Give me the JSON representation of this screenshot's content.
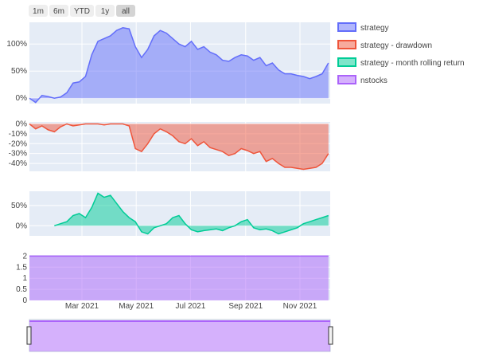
{
  "range_selector": {
    "buttons": [
      {
        "label": "1m",
        "active": false
      },
      {
        "label": "6m",
        "active": false
      },
      {
        "label": "YTD",
        "active": false
      },
      {
        "label": "1y",
        "active": false
      },
      {
        "label": "all",
        "active": true
      }
    ]
  },
  "colors": {
    "strategy": "#636efa",
    "drawdown": "#ef553b",
    "rolling": "#00cc96",
    "nstocks": "#ab63fa",
    "plot_bg": "#e5ecf6"
  },
  "legend": {
    "position": "top-right",
    "items": [
      {
        "label": "strategy",
        "color": "#636efa"
      },
      {
        "label": "strategy - drawdown",
        "color": "#ef553b"
      },
      {
        "label": "strategy - month rolling return",
        "color": "#00cc96"
      },
      {
        "label": "nstocks",
        "color": "#ab63fa"
      }
    ]
  },
  "chart_data": [
    {
      "type": "area",
      "series": [
        {
          "name": "strategy",
          "x": [
            "2021-01-01",
            "2021-01-08",
            "2021-01-15",
            "2021-01-22",
            "2021-01-29",
            "2021-02-05",
            "2021-02-12",
            "2021-02-19",
            "2021-02-26",
            "2021-03-05",
            "2021-03-12",
            "2021-03-19",
            "2021-03-26",
            "2021-04-02",
            "2021-04-09",
            "2021-04-16",
            "2021-04-23",
            "2021-04-30",
            "2021-05-07",
            "2021-05-14",
            "2021-05-21",
            "2021-05-28",
            "2021-06-04",
            "2021-06-11",
            "2021-06-18",
            "2021-06-25",
            "2021-07-02",
            "2021-07-09",
            "2021-07-16",
            "2021-07-23",
            "2021-07-30",
            "2021-08-06",
            "2021-08-13",
            "2021-08-20",
            "2021-08-27",
            "2021-09-03",
            "2021-09-10",
            "2021-09-17",
            "2021-09-24",
            "2021-10-01",
            "2021-10-08",
            "2021-10-15",
            "2021-10-22",
            "2021-10-29",
            "2021-11-05",
            "2021-11-12",
            "2021-11-19",
            "2021-11-26",
            "2021-12-03"
          ],
          "y": [
            0,
            -8,
            5,
            3,
            0,
            2,
            10,
            28,
            30,
            40,
            80,
            105,
            110,
            115,
            125,
            130,
            128,
            95,
            75,
            90,
            115,
            125,
            120,
            110,
            100,
            95,
            105,
            90,
            95,
            85,
            80,
            70,
            68,
            75,
            80,
            78,
            70,
            75,
            60,
            65,
            52,
            45,
            45,
            42,
            40,
            36,
            40,
            45,
            65
          ]
        }
      ],
      "yticks": [
        "0%",
        "50%",
        "100%"
      ],
      "ylim": [
        -10,
        140
      ]
    },
    {
      "type": "area",
      "series": [
        {
          "name": "strategy - drawdown",
          "x": [
            "2021-01-01",
            "2021-01-08",
            "2021-01-15",
            "2021-01-22",
            "2021-01-29",
            "2021-02-05",
            "2021-02-12",
            "2021-02-19",
            "2021-02-26",
            "2021-03-05",
            "2021-03-12",
            "2021-03-19",
            "2021-03-26",
            "2021-04-02",
            "2021-04-09",
            "2021-04-16",
            "2021-04-23",
            "2021-04-30",
            "2021-05-07",
            "2021-05-14",
            "2021-05-21",
            "2021-05-28",
            "2021-06-04",
            "2021-06-11",
            "2021-06-18",
            "2021-06-25",
            "2021-07-02",
            "2021-07-09",
            "2021-07-16",
            "2021-07-23",
            "2021-07-30",
            "2021-08-06",
            "2021-08-13",
            "2021-08-20",
            "2021-08-27",
            "2021-09-03",
            "2021-09-10",
            "2021-09-17",
            "2021-09-24",
            "2021-10-01",
            "2021-10-08",
            "2021-10-15",
            "2021-10-22",
            "2021-10-29",
            "2021-11-05",
            "2021-11-12",
            "2021-11-19",
            "2021-11-26",
            "2021-12-03"
          ],
          "y": [
            0,
            -5,
            -2,
            -6,
            -8,
            -3,
            0,
            -2,
            -1,
            0,
            0,
            0,
            -1,
            0,
            0,
            0,
            -2,
            -25,
            -28,
            -20,
            -10,
            -5,
            -8,
            -12,
            -18,
            -20,
            -15,
            -22,
            -18,
            -24,
            -26,
            -28,
            -32,
            -30,
            -25,
            -27,
            -30,
            -28,
            -38,
            -35,
            -40,
            -44,
            -44,
            -45,
            -46,
            -45,
            -44,
            -40,
            -30
          ]
        }
      ],
      "yticks": [
        "0%",
        "-10%",
        "-20%",
        "-30%",
        "-40%"
      ],
      "ylim": [
        -48,
        2
      ]
    },
    {
      "type": "area",
      "series": [
        {
          "name": "strategy - month rolling return",
          "x": [
            "2021-01-29",
            "2021-02-05",
            "2021-02-12",
            "2021-02-19",
            "2021-02-26",
            "2021-03-05",
            "2021-03-12",
            "2021-03-19",
            "2021-03-26",
            "2021-04-02",
            "2021-04-09",
            "2021-04-16",
            "2021-04-23",
            "2021-04-30",
            "2021-05-07",
            "2021-05-14",
            "2021-05-21",
            "2021-05-28",
            "2021-06-04",
            "2021-06-11",
            "2021-06-18",
            "2021-06-25",
            "2021-07-02",
            "2021-07-09",
            "2021-07-16",
            "2021-07-23",
            "2021-07-30",
            "2021-08-06",
            "2021-08-13",
            "2021-08-20",
            "2021-08-27",
            "2021-09-03",
            "2021-09-10",
            "2021-09-17",
            "2021-09-24",
            "2021-10-01",
            "2021-10-08",
            "2021-10-15",
            "2021-10-22",
            "2021-10-29",
            "2021-11-05",
            "2021-11-12",
            "2021-11-19",
            "2021-11-26",
            "2021-12-03"
          ],
          "y": [
            0,
            5,
            10,
            25,
            30,
            20,
            45,
            80,
            70,
            75,
            55,
            35,
            20,
            10,
            -15,
            -20,
            -5,
            0,
            5,
            20,
            25,
            5,
            -10,
            -15,
            -12,
            -10,
            -8,
            -12,
            -5,
            0,
            10,
            15,
            -5,
            -10,
            -8,
            -12,
            -20,
            -15,
            -10,
            -5,
            5,
            10,
            15,
            20,
            25
          ]
        }
      ],
      "yticks": [
        "0%",
        "50%"
      ],
      "ylim": [
        -25,
        85
      ]
    },
    {
      "type": "area",
      "series": [
        {
          "name": "nstocks",
          "x": [
            "2021-01-01",
            "2021-12-03"
          ],
          "y": [
            2,
            2
          ]
        }
      ],
      "yticks": [
        "0",
        "0.5",
        "1",
        "1.5",
        "2"
      ],
      "ylim": [
        0,
        2.05
      ]
    }
  ],
  "x_axis": {
    "range": [
      "2021-01-01",
      "2021-12-05"
    ],
    "ticks": [
      {
        "date": "2021-03-01",
        "label": "Mar 2021"
      },
      {
        "date": "2021-05-01",
        "label": "May 2021"
      },
      {
        "date": "2021-07-01",
        "label": "Jul 2021"
      },
      {
        "date": "2021-09-01",
        "label": "Sep 2021"
      },
      {
        "date": "2021-11-01",
        "label": "Nov 2021"
      }
    ]
  }
}
